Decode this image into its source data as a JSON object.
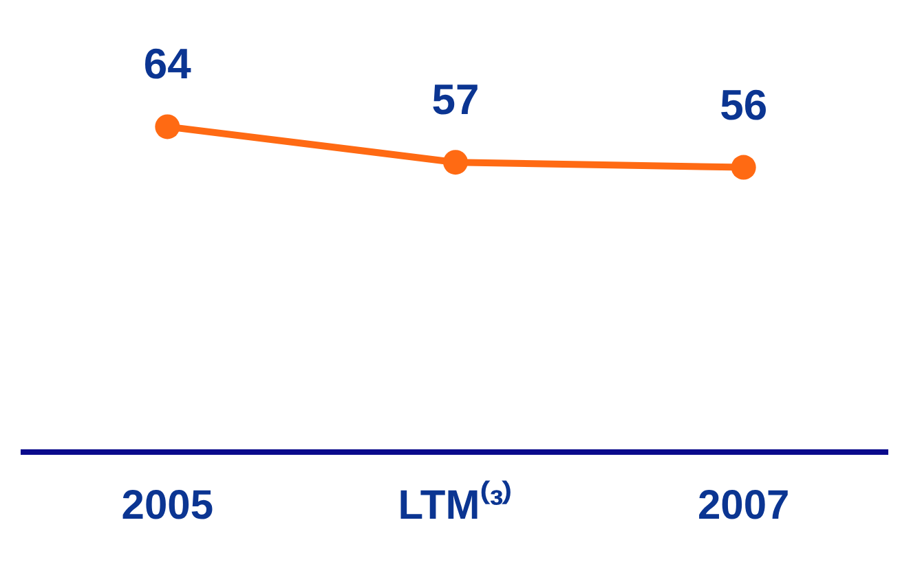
{
  "chart_data": {
    "type": "line",
    "categories": [
      "2005",
      "LTM⁽³⁾",
      "2007"
    ],
    "series": [
      {
        "color": "#ff6a13",
        "values": [
          64,
          57,
          56
        ]
      }
    ],
    "tick_labels": "x",
    "data_labels": true,
    "grid": false,
    "legend": false,
    "marker": "circle",
    "line_style": "solid"
  }
}
